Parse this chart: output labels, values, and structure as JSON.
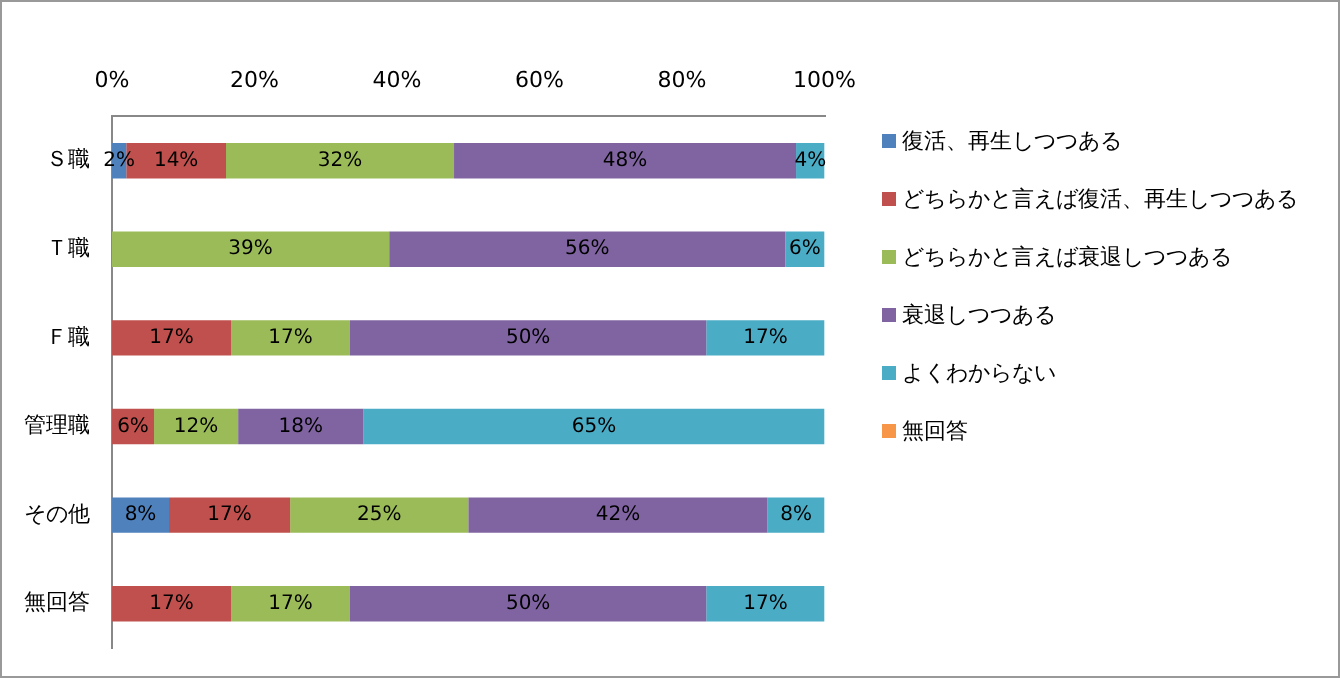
{
  "chart_data": {
    "type": "bar",
    "orientation": "horizontal",
    "stacked": true,
    "categories": [
      "Ｓ職",
      "Ｔ職",
      "Ｆ職",
      "管理職",
      "その他",
      "無回答"
    ],
    "series": [
      {
        "name": "復活、再生しつつある",
        "color": "#4f81bd",
        "values": [
          2,
          0,
          0,
          0,
          8,
          0
        ],
        "value_labels": [
          "2%",
          null,
          null,
          null,
          "8%",
          null
        ]
      },
      {
        "name": "どちらかと言えば復活、再生しつつある",
        "color": "#c0504d",
        "values": [
          14,
          0,
          16.7,
          5.9,
          17,
          16.7
        ],
        "value_labels": [
          "14%",
          null,
          "17%",
          "6%",
          "17%",
          "17%"
        ]
      },
      {
        "name": "どちらかと言えば衰退しつつある",
        "color": "#9bbb59",
        "values": [
          32,
          38.9,
          16.7,
          11.8,
          25,
          16.7
        ],
        "value_labels": [
          "32%",
          "39%",
          "17%",
          "12%",
          "25%",
          "17%"
        ]
      },
      {
        "name": "衰退しつつある",
        "color": "#8064a2",
        "values": [
          48,
          55.6,
          50,
          17.6,
          42,
          50
        ],
        "value_labels": [
          "48%",
          "56%",
          "50%",
          "18%",
          "42%",
          "50%"
        ]
      },
      {
        "name": "よくわからない",
        "color": "#4bacc6",
        "values": [
          4,
          5.5,
          16.6,
          64.7,
          8,
          16.6
        ],
        "value_labels": [
          "4%",
          "6%",
          "17%",
          "65%",
          "8%",
          "17%"
        ]
      },
      {
        "name": "無回答",
        "color": "#f79646",
        "values": [
          0,
          0,
          0,
          0,
          0,
          0
        ],
        "value_labels": [
          null,
          null,
          null,
          null,
          null,
          null
        ]
      }
    ],
    "xlim": [
      0,
      100
    ],
    "xticks": [
      {
        "value": 0,
        "label": "0%"
      },
      {
        "value": 20,
        "label": "20%"
      },
      {
        "value": 40,
        "label": "40%"
      },
      {
        "value": 60,
        "label": "60%"
      },
      {
        "value": 80,
        "label": "80%"
      },
      {
        "value": 100,
        "label": "100%"
      }
    ],
    "grid": false,
    "legend": "right"
  }
}
